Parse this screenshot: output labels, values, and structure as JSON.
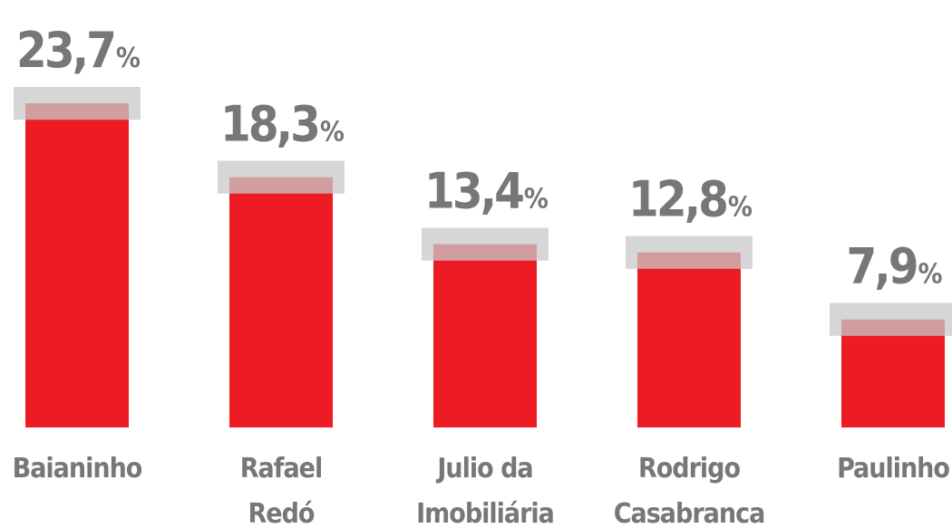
{
  "chart_data": {
    "type": "bar",
    "categories": [
      [
        "Baianinho"
      ],
      [
        "Rafael",
        "Redó"
      ],
      [
        "Julio da",
        "Imobiliária"
      ],
      [
        "Rodrigo",
        "Casabranca"
      ],
      [
        "Paulinho"
      ]
    ],
    "values": [
      23.7,
      18.3,
      13.4,
      12.8,
      7.9
    ],
    "value_labels": [
      "23,7%",
      "18,3%",
      "13,4%",
      "12,8%",
      "7,9%"
    ],
    "error": [
      1.2,
      1.2,
      1.2,
      1.2,
      1.2
    ],
    "color": "#ed1c24",
    "error_color": "#c8c8c8",
    "ylim": [
      0,
      25
    ]
  }
}
